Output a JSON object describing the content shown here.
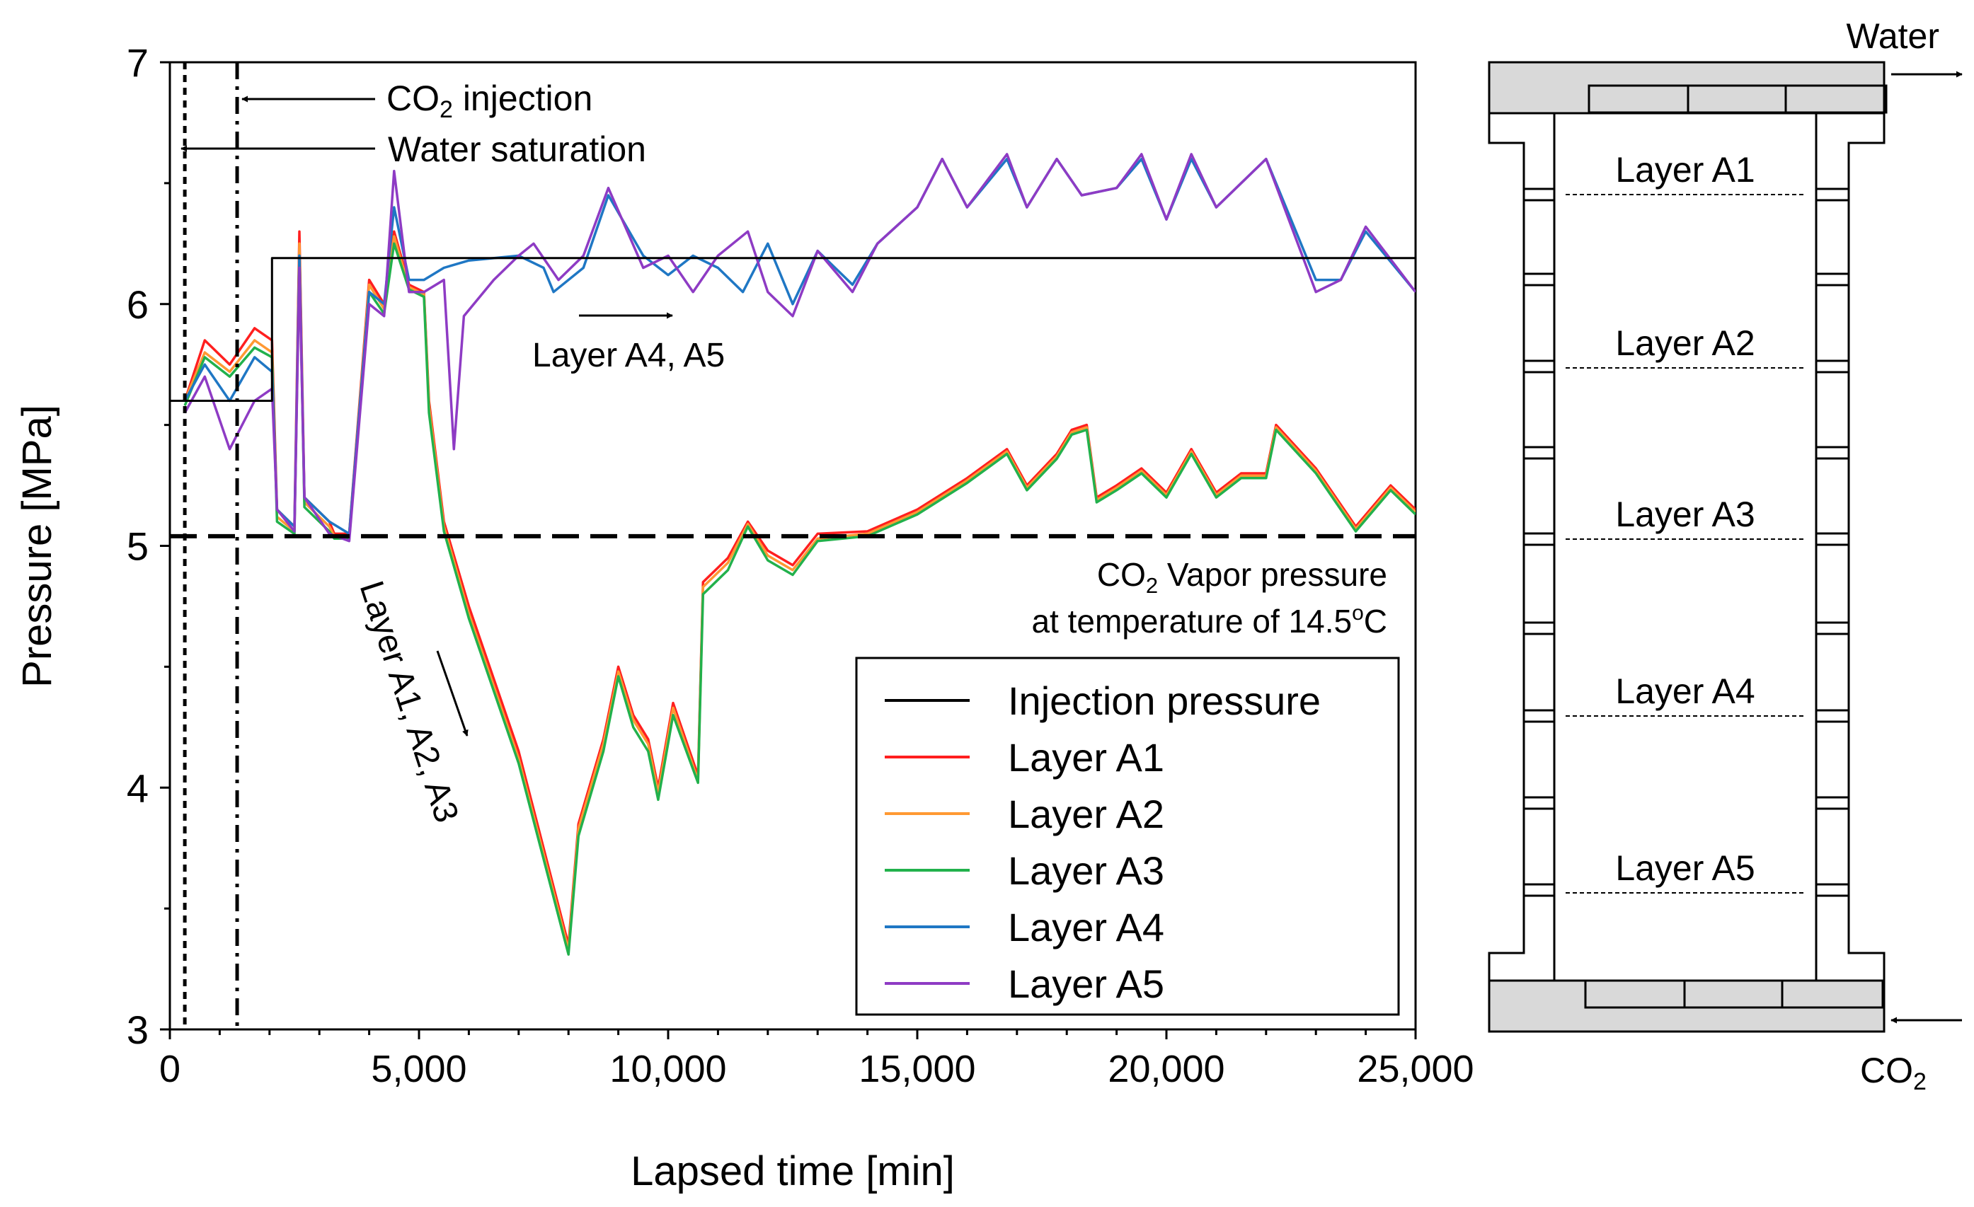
{
  "chart_data": {
    "type": "line",
    "xlabel": "Lapsed time [min]",
    "ylabel": "Pressure [MPa]",
    "xlim": [
      0,
      25000
    ],
    "ylim": [
      3,
      7
    ],
    "x_ticks": [
      "0",
      "5,000",
      "10,000",
      "15,000",
      "20,000",
      "25,000"
    ],
    "y_ticks": [
      "3",
      "4",
      "5",
      "6",
      "7"
    ],
    "legend_position": "bottom-right",
    "series": [
      {
        "name": "Injection pressure",
        "color": "#000000",
        "points": [
          [
            0,
            5.6
          ],
          [
            2050,
            5.6
          ],
          [
            2050,
            6.19
          ],
          [
            25000,
            6.19
          ]
        ]
      },
      {
        "name": "Layer A1",
        "color": "#ff1f1f",
        "points": [
          [
            300,
            5.6
          ],
          [
            700,
            5.85
          ],
          [
            1200,
            5.75
          ],
          [
            1700,
            5.9
          ],
          [
            2050,
            5.85
          ],
          [
            2150,
            5.15
          ],
          [
            2500,
            5.08
          ],
          [
            2600,
            6.3
          ],
          [
            2700,
            5.2
          ],
          [
            3200,
            5.1
          ],
          [
            3300,
            5.05
          ],
          [
            3600,
            5.05
          ],
          [
            4000,
            6.1
          ],
          [
            4300,
            6.0
          ],
          [
            4500,
            6.3
          ],
          [
            4800,
            6.08
          ],
          [
            5100,
            6.05
          ],
          [
            5200,
            5.6
          ],
          [
            5500,
            5.1
          ],
          [
            6000,
            4.75
          ],
          [
            7000,
            4.15
          ],
          [
            8000,
            3.35
          ],
          [
            8200,
            3.85
          ],
          [
            8700,
            4.2
          ],
          [
            9000,
            4.5
          ],
          [
            9300,
            4.3
          ],
          [
            9600,
            4.2
          ],
          [
            9800,
            4.0
          ],
          [
            10100,
            4.35
          ],
          [
            10600,
            4.05
          ],
          [
            10700,
            4.85
          ],
          [
            11200,
            4.95
          ],
          [
            11600,
            5.1
          ],
          [
            12000,
            4.98
          ],
          [
            12500,
            4.92
          ],
          [
            13000,
            5.05
          ],
          [
            14000,
            5.06
          ],
          [
            15000,
            5.15
          ],
          [
            16000,
            5.28
          ],
          [
            16800,
            5.4
          ],
          [
            17200,
            5.25
          ],
          [
            17800,
            5.38
          ],
          [
            18100,
            5.48
          ],
          [
            18400,
            5.5
          ],
          [
            18600,
            5.2
          ],
          [
            19000,
            5.25
          ],
          [
            19500,
            5.32
          ],
          [
            20000,
            5.22
          ],
          [
            20500,
            5.4
          ],
          [
            21000,
            5.22
          ],
          [
            21500,
            5.3
          ],
          [
            22000,
            5.3
          ],
          [
            22200,
            5.5
          ],
          [
            23000,
            5.32
          ],
          [
            23800,
            5.08
          ],
          [
            24500,
            5.25
          ],
          [
            25000,
            5.15
          ]
        ]
      },
      {
        "name": "Layer A2",
        "color": "#ff9933",
        "points": [
          [
            300,
            5.6
          ],
          [
            700,
            5.8
          ],
          [
            1200,
            5.72
          ],
          [
            1700,
            5.85
          ],
          [
            2050,
            5.8
          ],
          [
            2150,
            5.12
          ],
          [
            2500,
            5.06
          ],
          [
            2600,
            6.25
          ],
          [
            2700,
            5.18
          ],
          [
            3200,
            5.08
          ],
          [
            3300,
            5.04
          ],
          [
            3600,
            5.04
          ],
          [
            4000,
            6.08
          ],
          [
            4300,
            5.98
          ],
          [
            4500,
            6.28
          ],
          [
            4800,
            6.07
          ],
          [
            5100,
            6.04
          ],
          [
            5200,
            5.58
          ],
          [
            5500,
            5.08
          ],
          [
            6000,
            4.72
          ],
          [
            7000,
            4.12
          ],
          [
            8000,
            3.33
          ],
          [
            8200,
            3.83
          ],
          [
            8700,
            4.18
          ],
          [
            9000,
            4.48
          ],
          [
            9300,
            4.28
          ],
          [
            9600,
            4.18
          ],
          [
            9800,
            3.98
          ],
          [
            10100,
            4.33
          ],
          [
            10600,
            4.03
          ],
          [
            10700,
            4.83
          ],
          [
            11200,
            4.93
          ],
          [
            11600,
            5.09
          ],
          [
            12000,
            4.96
          ],
          [
            12500,
            4.9
          ],
          [
            13000,
            5.03
          ],
          [
            14000,
            5.05
          ],
          [
            15000,
            5.14
          ],
          [
            16000,
            5.27
          ],
          [
            16800,
            5.39
          ],
          [
            17200,
            5.24
          ],
          [
            17800,
            5.37
          ],
          [
            18100,
            5.47
          ],
          [
            18400,
            5.49
          ],
          [
            18600,
            5.19
          ],
          [
            19000,
            5.24
          ],
          [
            19500,
            5.31
          ],
          [
            20000,
            5.21
          ],
          [
            20500,
            5.39
          ],
          [
            21000,
            5.21
          ],
          [
            21500,
            5.29
          ],
          [
            22000,
            5.29
          ],
          [
            22200,
            5.49
          ],
          [
            23000,
            5.31
          ],
          [
            23800,
            5.07
          ],
          [
            24500,
            5.24
          ],
          [
            25000,
            5.14
          ]
        ]
      },
      {
        "name": "Layer A3",
        "color": "#22b14c",
        "points": [
          [
            300,
            5.58
          ],
          [
            700,
            5.78
          ],
          [
            1200,
            5.7
          ],
          [
            1700,
            5.82
          ],
          [
            2050,
            5.78
          ],
          [
            2150,
            5.1
          ],
          [
            2500,
            5.05
          ],
          [
            2600,
            6.2
          ],
          [
            2700,
            5.16
          ],
          [
            3200,
            5.06
          ],
          [
            3300,
            5.03
          ],
          [
            3600,
            5.03
          ],
          [
            4000,
            6.05
          ],
          [
            4300,
            5.96
          ],
          [
            4500,
            6.25
          ],
          [
            4800,
            6.06
          ],
          [
            5100,
            6.03
          ],
          [
            5200,
            5.55
          ],
          [
            5500,
            5.06
          ],
          [
            6000,
            4.7
          ],
          [
            7000,
            4.1
          ],
          [
            8000,
            3.31
          ],
          [
            8200,
            3.8
          ],
          [
            8700,
            4.15
          ],
          [
            9000,
            4.46
          ],
          [
            9300,
            4.25
          ],
          [
            9600,
            4.15
          ],
          [
            9800,
            3.95
          ],
          [
            10100,
            4.3
          ],
          [
            10600,
            4.02
          ],
          [
            10700,
            4.8
          ],
          [
            11200,
            4.9
          ],
          [
            11600,
            5.08
          ],
          [
            12000,
            4.94
          ],
          [
            12500,
            4.88
          ],
          [
            13000,
            5.02
          ],
          [
            14000,
            5.04
          ],
          [
            15000,
            5.13
          ],
          [
            16000,
            5.26
          ],
          [
            16800,
            5.38
          ],
          [
            17200,
            5.23
          ],
          [
            17800,
            5.36
          ],
          [
            18100,
            5.46
          ],
          [
            18400,
            5.48
          ],
          [
            18600,
            5.18
          ],
          [
            19000,
            5.23
          ],
          [
            19500,
            5.3
          ],
          [
            20000,
            5.2
          ],
          [
            20500,
            5.38
          ],
          [
            21000,
            5.2
          ],
          [
            21500,
            5.28
          ],
          [
            22000,
            5.28
          ],
          [
            22200,
            5.48
          ],
          [
            23000,
            5.3
          ],
          [
            23800,
            5.06
          ],
          [
            24500,
            5.23
          ],
          [
            25000,
            5.13
          ]
        ]
      },
      {
        "name": "Layer A4",
        "color": "#1f77c4",
        "points": [
          [
            300,
            5.6
          ],
          [
            700,
            5.75
          ],
          [
            1200,
            5.6
          ],
          [
            1700,
            5.78
          ],
          [
            2050,
            5.72
          ],
          [
            2150,
            5.15
          ],
          [
            2500,
            5.08
          ],
          [
            2600,
            6.2
          ],
          [
            2700,
            5.2
          ],
          [
            3200,
            5.1
          ],
          [
            3600,
            5.05
          ],
          [
            4000,
            6.05
          ],
          [
            4300,
            6.0
          ],
          [
            4500,
            6.4
          ],
          [
            4800,
            6.1
          ],
          [
            5100,
            6.1
          ],
          [
            5500,
            6.15
          ],
          [
            6000,
            6.18
          ],
          [
            7000,
            6.2
          ],
          [
            7500,
            6.15
          ],
          [
            7700,
            6.05
          ],
          [
            8300,
            6.15
          ],
          [
            8800,
            6.45
          ],
          [
            9500,
            6.2
          ],
          [
            10000,
            6.12
          ],
          [
            10500,
            6.2
          ],
          [
            11000,
            6.15
          ],
          [
            11500,
            6.05
          ],
          [
            12000,
            6.25
          ],
          [
            12500,
            6.0
          ],
          [
            13000,
            6.22
          ],
          [
            13700,
            6.08
          ],
          [
            14200,
            6.25
          ],
          [
            15000,
            6.4
          ],
          [
            15500,
            6.6
          ],
          [
            16000,
            6.4
          ],
          [
            16800,
            6.6
          ],
          [
            17200,
            6.4
          ],
          [
            17800,
            6.6
          ],
          [
            18300,
            6.45
          ],
          [
            19000,
            6.48
          ],
          [
            19500,
            6.6
          ],
          [
            20000,
            6.35
          ],
          [
            20500,
            6.6
          ],
          [
            21000,
            6.4
          ],
          [
            22000,
            6.6
          ],
          [
            23000,
            6.1
          ],
          [
            23500,
            6.1
          ],
          [
            24000,
            6.3
          ],
          [
            25000,
            6.05
          ]
        ]
      },
      {
        "name": "Layer A5",
        "color": "#8e3bc4",
        "points": [
          [
            300,
            5.55
          ],
          [
            700,
            5.7
          ],
          [
            1200,
            5.4
          ],
          [
            1700,
            5.6
          ],
          [
            2050,
            5.65
          ],
          [
            2150,
            5.15
          ],
          [
            2500,
            5.06
          ],
          [
            2600,
            6.15
          ],
          [
            2700,
            5.2
          ],
          [
            3200,
            5.05
          ],
          [
            3600,
            5.02
          ],
          [
            4000,
            6.0
          ],
          [
            4300,
            5.95
          ],
          [
            4500,
            6.55
          ],
          [
            4800,
            6.05
          ],
          [
            5100,
            6.05
          ],
          [
            5500,
            6.1
          ],
          [
            5700,
            5.4
          ],
          [
            5900,
            5.95
          ],
          [
            6500,
            6.1
          ],
          [
            7000,
            6.2
          ],
          [
            7300,
            6.25
          ],
          [
            7800,
            6.1
          ],
          [
            8300,
            6.2
          ],
          [
            8800,
            6.48
          ],
          [
            9500,
            6.15
          ],
          [
            10000,
            6.2
          ],
          [
            10500,
            6.05
          ],
          [
            11000,
            6.2
          ],
          [
            11600,
            6.3
          ],
          [
            12000,
            6.05
          ],
          [
            12500,
            5.95
          ],
          [
            13000,
            6.22
          ],
          [
            13700,
            6.05
          ],
          [
            14200,
            6.25
          ],
          [
            15000,
            6.4
          ],
          [
            15500,
            6.6
          ],
          [
            16000,
            6.4
          ],
          [
            16800,
            6.62
          ],
          [
            17200,
            6.4
          ],
          [
            17800,
            6.6
          ],
          [
            18300,
            6.45
          ],
          [
            19000,
            6.48
          ],
          [
            19500,
            6.62
          ],
          [
            20000,
            6.35
          ],
          [
            20500,
            6.62
          ],
          [
            21000,
            6.4
          ],
          [
            22000,
            6.6
          ],
          [
            23000,
            6.05
          ],
          [
            23500,
            6.1
          ],
          [
            24000,
            6.32
          ],
          [
            25000,
            6.05
          ]
        ]
      }
    ],
    "vapor_pressure_line": {
      "y": 5.04,
      "color": "#000000"
    },
    "event_lines": [
      {
        "x": 300,
        "style": "dotted",
        "label": "Water saturation"
      },
      {
        "x": 1350,
        "style": "dash-dot",
        "label": "CO₂ injection"
      }
    ],
    "annotations": {
      "co2_injection": "CO₂ injection",
      "water_saturation": "Water saturation",
      "layer_a4_a5": "Layer A4, A5",
      "layer_a1_a3": "Layer A1, A2, A3",
      "vapor_line1": "CO₂ Vapor pressure",
      "vapor_line2": "at temperature of 14.5°C"
    }
  },
  "diagram": {
    "water_label": "Water",
    "co2_label": "CO₂",
    "layers": [
      "Layer A1",
      "Layer A2",
      "Layer A3",
      "Layer A4",
      "Layer A5"
    ]
  }
}
